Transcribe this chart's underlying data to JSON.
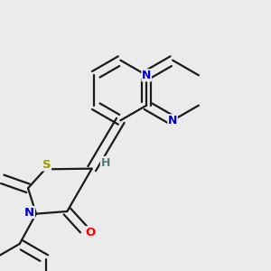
{
  "bg_color": "#ebebeb",
  "bond_color": "#1a1a1a",
  "atom_colors": {
    "N": "#0000cc",
    "O": "#ff0000",
    "S_thione": "#999900",
    "S_ring": "#999900",
    "H": "#4d8080"
  },
  "figsize": [
    3.0,
    3.0
  ],
  "dpi": 100
}
